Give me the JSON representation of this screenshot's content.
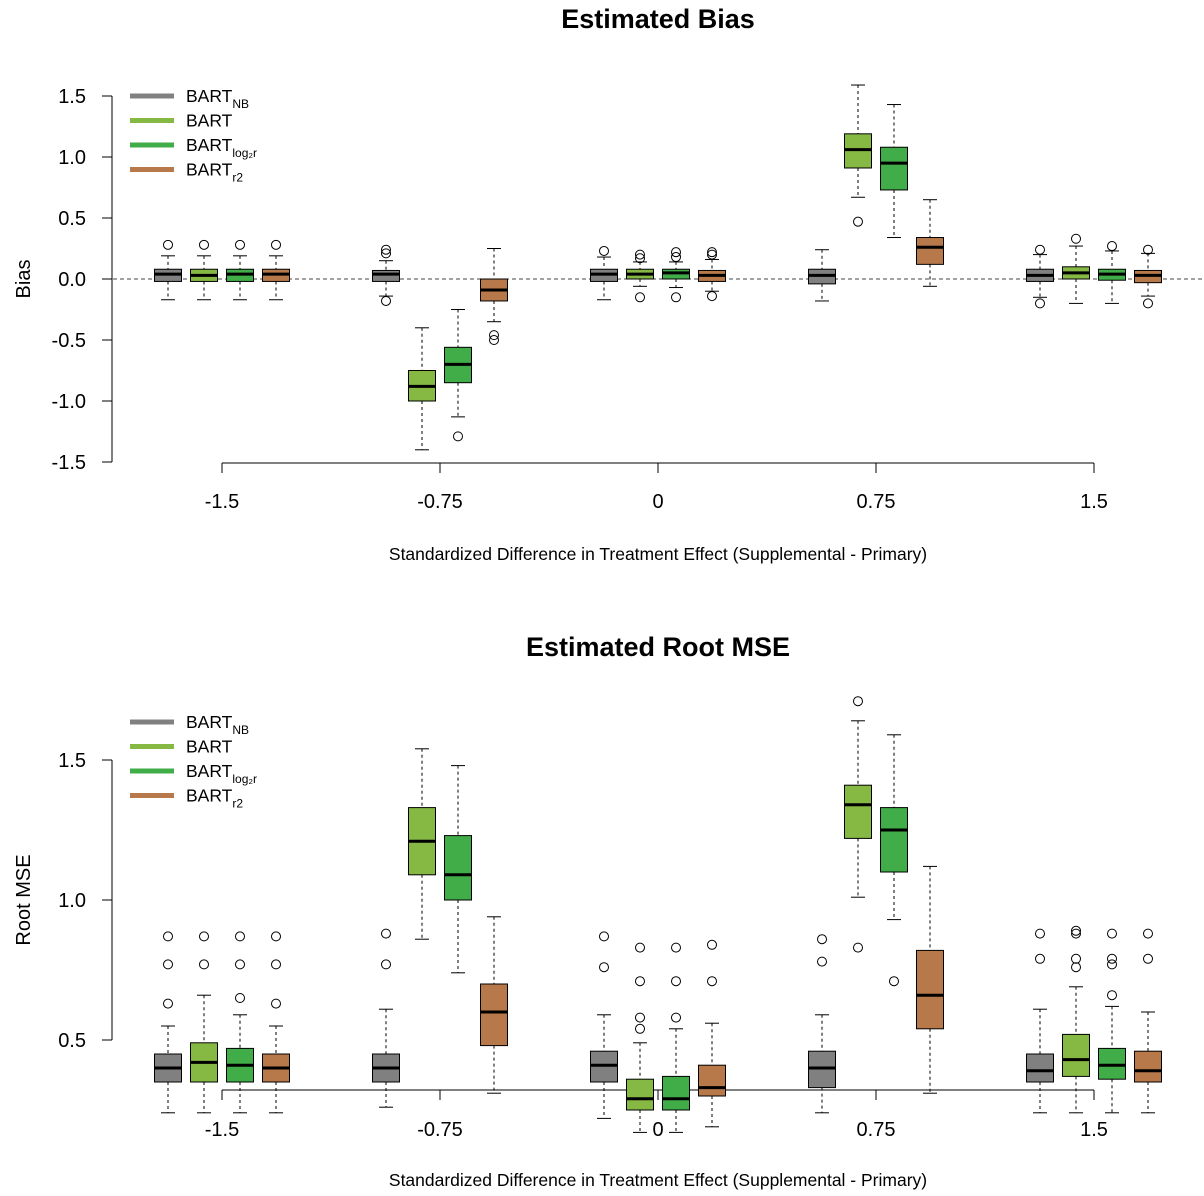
{
  "chart_data": [
    {
      "type": "boxplot",
      "title": "Estimated Bias",
      "xlabel": "Standardized Difference in Treatment Effect (Supplemental - Primary)",
      "ylabel": "Bias",
      "ylim": [
        -1.5,
        1.6
      ],
      "yticks": [
        "-1.5",
        "-1.0",
        "-0.5",
        "0.0",
        "0.5",
        "1.0",
        "1.5"
      ],
      "categories": [
        "-1.5",
        "-0.75",
        "0",
        "0.75",
        "1.5"
      ],
      "reference_line": 0,
      "legend": {
        "position": "top-left"
      },
      "series": [
        {
          "name": "BART",
          "name_sub": "NB",
          "color": "#808080",
          "boxes": [
            {
              "min": -0.17,
              "q1": -0.02,
              "median": 0.04,
              "q3": 0.08,
              "max": 0.19,
              "outliers": [
                0.28
              ]
            },
            {
              "min": -0.14,
              "q1": -0.02,
              "median": 0.04,
              "q3": 0.07,
              "max": 0.15,
              "outliers": [
                0.21,
                0.24,
                -0.18
              ]
            },
            {
              "min": -0.17,
              "q1": -0.02,
              "median": 0.04,
              "q3": 0.08,
              "max": 0.18,
              "outliers": [
                0.23
              ]
            },
            {
              "min": -0.18,
              "q1": -0.04,
              "median": 0.03,
              "q3": 0.08,
              "max": 0.24,
              "outliers": []
            },
            {
              "min": -0.15,
              "q1": -0.02,
              "median": 0.03,
              "q3": 0.08,
              "max": 0.2,
              "outliers": [
                0.24,
                -0.2
              ]
            }
          ]
        },
        {
          "name": "BART",
          "name_sub": "",
          "color": "#86b944",
          "boxes": [
            {
              "min": -0.17,
              "q1": -0.02,
              "median": 0.03,
              "q3": 0.08,
              "max": 0.19,
              "outliers": [
                0.28
              ]
            },
            {
              "min": -1.4,
              "q1": -1.0,
              "median": -0.88,
              "q3": -0.75,
              "max": -0.4,
              "outliers": []
            },
            {
              "min": -0.06,
              "q1": 0.0,
              "median": 0.04,
              "q3": 0.08,
              "max": 0.14,
              "outliers": [
                0.2,
                0.17,
                -0.15
              ]
            },
            {
              "min": 0.67,
              "q1": 0.91,
              "median": 1.06,
              "q3": 1.19,
              "max": 1.59,
              "outliers": [
                0.47
              ]
            },
            {
              "min": -0.2,
              "q1": 0.0,
              "median": 0.05,
              "q3": 0.1,
              "max": 0.27,
              "outliers": [
                0.33
              ]
            }
          ]
        },
        {
          "name": "BART",
          "name_sub": "log₂r",
          "color": "#41ad48",
          "boxes": [
            {
              "min": -0.17,
              "q1": -0.02,
              "median": 0.04,
              "q3": 0.08,
              "max": 0.19,
              "outliers": [
                0.28
              ]
            },
            {
              "min": -1.13,
              "q1": -0.85,
              "median": -0.7,
              "q3": -0.56,
              "max": -0.25,
              "outliers": [
                -1.29
              ]
            },
            {
              "min": -0.07,
              "q1": 0.0,
              "median": 0.05,
              "q3": 0.08,
              "max": 0.14,
              "outliers": [
                0.22,
                0.18,
                -0.15
              ]
            },
            {
              "min": 0.34,
              "q1": 0.73,
              "median": 0.95,
              "q3": 1.08,
              "max": 1.43,
              "outliers": []
            },
            {
              "min": -0.2,
              "q1": -0.01,
              "median": 0.04,
              "q3": 0.08,
              "max": 0.23,
              "outliers": [
                0.27
              ]
            }
          ]
        },
        {
          "name": "BART",
          "name_sub": "r2",
          "color": "#b8794a",
          "boxes": [
            {
              "min": -0.17,
              "q1": -0.02,
              "median": 0.04,
              "q3": 0.08,
              "max": 0.19,
              "outliers": [
                0.28
              ]
            },
            {
              "min": -0.35,
              "q1": -0.18,
              "median": -0.09,
              "q3": 0.0,
              "max": 0.25,
              "outliers": [
                -0.46,
                -0.5
              ]
            },
            {
              "min": -0.1,
              "q1": -0.02,
              "median": 0.03,
              "q3": 0.07,
              "max": 0.16,
              "outliers": [
                0.22,
                0.2,
                -0.14
              ]
            },
            {
              "min": -0.06,
              "q1": 0.12,
              "median": 0.26,
              "q3": 0.34,
              "max": 0.65,
              "outliers": []
            },
            {
              "min": -0.14,
              "q1": -0.03,
              "median": 0.03,
              "q3": 0.07,
              "max": 0.21,
              "outliers": [
                0.24,
                -0.2
              ]
            }
          ]
        }
      ]
    },
    {
      "type": "boxplot",
      "title": "Estimated Root MSE",
      "xlabel": "Standardized Difference in Treatment Effect (Supplemental - Primary)",
      "ylabel": "Root MSE",
      "ylim": [
        0.08,
        1.72
      ],
      "yticks": [
        "0.5",
        "1.0",
        "1.5"
      ],
      "categories": [
        "-1.5",
        "-0.75",
        "0",
        "0.75",
        "1.5"
      ],
      "legend": {
        "position": "top-left"
      },
      "series": [
        {
          "name": "BART",
          "name_sub": "NB",
          "color": "#808080",
          "boxes": [
            {
              "min": 0.24,
              "q1": 0.35,
              "median": 0.4,
              "q3": 0.45,
              "max": 0.55,
              "outliers": [
                0.63,
                0.77,
                0.87
              ]
            },
            {
              "min": 0.26,
              "q1": 0.35,
              "median": 0.4,
              "q3": 0.45,
              "max": 0.61,
              "outliers": [
                0.77,
                0.88
              ]
            },
            {
              "min": 0.22,
              "q1": 0.35,
              "median": 0.41,
              "q3": 0.46,
              "max": 0.59,
              "outliers": [
                0.76,
                0.87
              ]
            },
            {
              "min": 0.24,
              "q1": 0.33,
              "median": 0.4,
              "q3": 0.46,
              "max": 0.59,
              "outliers": [
                0.78,
                0.86
              ]
            },
            {
              "min": 0.24,
              "q1": 0.35,
              "median": 0.39,
              "q3": 0.45,
              "max": 0.61,
              "outliers": [
                0.79,
                0.88
              ]
            }
          ]
        },
        {
          "name": "BART",
          "name_sub": "",
          "color": "#86b944",
          "boxes": [
            {
              "min": 0.24,
              "q1": 0.35,
              "median": 0.42,
              "q3": 0.49,
              "max": 0.66,
              "outliers": [
                0.77,
                0.87
              ]
            },
            {
              "min": 0.86,
              "q1": 1.09,
              "median": 1.21,
              "q3": 1.33,
              "max": 1.54,
              "outliers": []
            },
            {
              "min": 0.17,
              "q1": 0.25,
              "median": 0.29,
              "q3": 0.36,
              "max": 0.49,
              "outliers": [
                0.54,
                0.58,
                0.71,
                0.83
              ]
            },
            {
              "min": 1.01,
              "q1": 1.22,
              "median": 1.34,
              "q3": 1.41,
              "max": 1.64,
              "outliers": [
                0.83,
                1.71
              ]
            },
            {
              "min": 0.24,
              "q1": 0.37,
              "median": 0.43,
              "q3": 0.52,
              "max": 0.69,
              "outliers": [
                0.76,
                0.79,
                0.88,
                0.89
              ]
            }
          ]
        },
        {
          "name": "BART",
          "name_sub": "log₂r",
          "color": "#41ad48",
          "boxes": [
            {
              "min": 0.24,
              "q1": 0.35,
              "median": 0.41,
              "q3": 0.47,
              "max": 0.59,
              "outliers": [
                0.65,
                0.77,
                0.87
              ]
            },
            {
              "min": 0.74,
              "q1": 1.0,
              "median": 1.09,
              "q3": 1.23,
              "max": 1.48,
              "outliers": []
            },
            {
              "min": 0.17,
              "q1": 0.25,
              "median": 0.29,
              "q3": 0.37,
              "max": 0.54,
              "outliers": [
                0.58,
                0.71,
                0.83
              ]
            },
            {
              "min": 0.93,
              "q1": 1.1,
              "median": 1.25,
              "q3": 1.33,
              "max": 1.59,
              "outliers": [
                0.71
              ]
            },
            {
              "min": 0.24,
              "q1": 0.36,
              "median": 0.41,
              "q3": 0.47,
              "max": 0.62,
              "outliers": [
                0.66,
                0.77,
                0.79,
                0.88
              ]
            }
          ]
        },
        {
          "name": "BART",
          "name_sub": "r2",
          "color": "#b8794a",
          "boxes": [
            {
              "min": 0.24,
              "q1": 0.35,
              "median": 0.4,
              "q3": 0.45,
              "max": 0.55,
              "outliers": [
                0.63,
                0.77,
                0.87
              ]
            },
            {
              "min": 0.31,
              "q1": 0.48,
              "median": 0.6,
              "q3": 0.7,
              "max": 0.94,
              "outliers": []
            },
            {
              "min": 0.19,
              "q1": 0.3,
              "median": 0.33,
              "q3": 0.41,
              "max": 0.56,
              "outliers": [
                0.71,
                0.84
              ]
            },
            {
              "min": 0.31,
              "q1": 0.54,
              "median": 0.66,
              "q3": 0.82,
              "max": 1.12,
              "outliers": []
            },
            {
              "min": 0.24,
              "q1": 0.35,
              "median": 0.39,
              "q3": 0.46,
              "max": 0.6,
              "outliers": [
                0.79,
                0.88
              ]
            }
          ]
        }
      ]
    }
  ]
}
